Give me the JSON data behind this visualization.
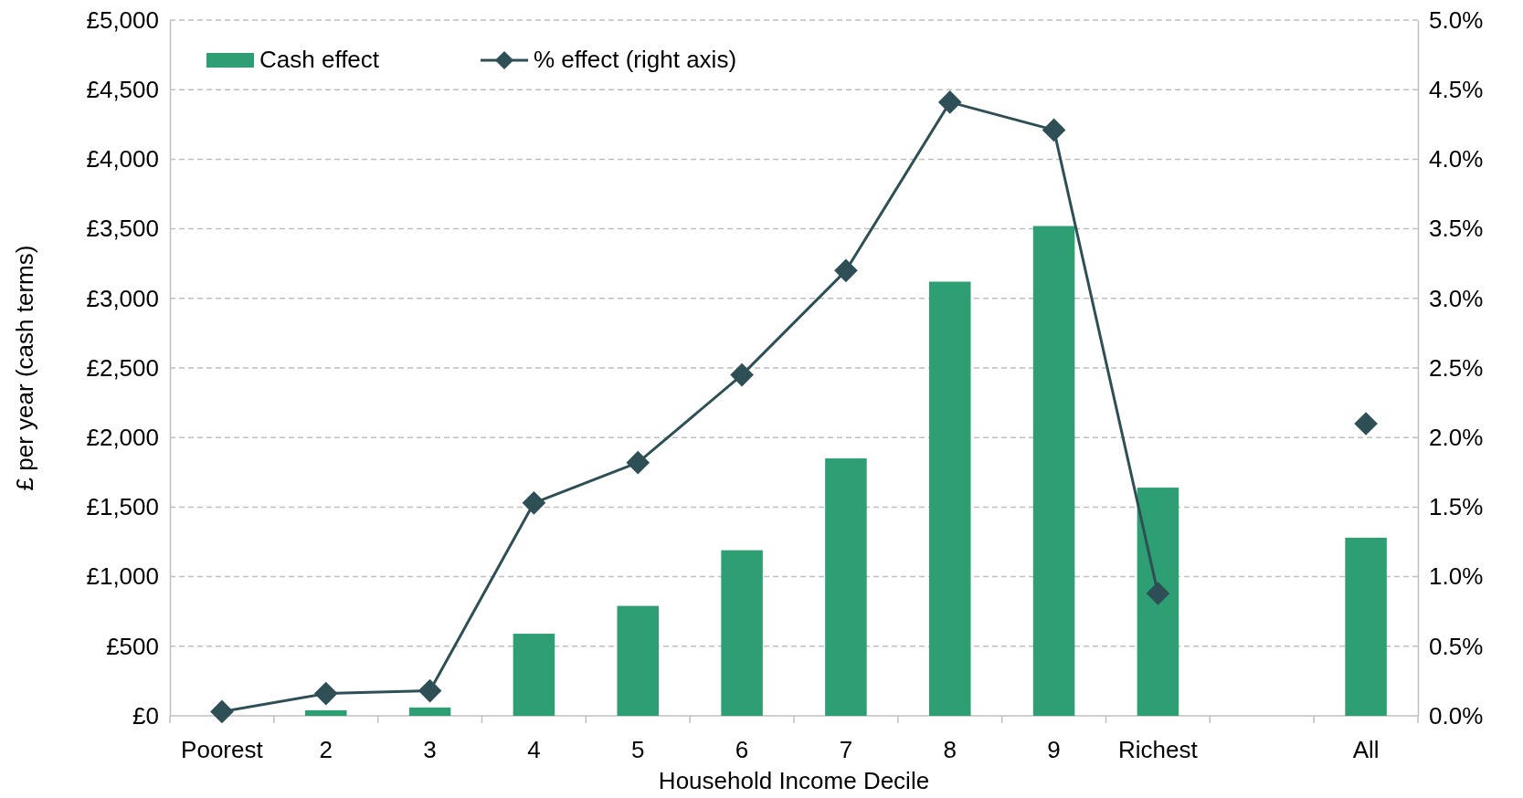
{
  "chart_data": {
    "type": "bar",
    "xlabel": "Household Income Decile",
    "ylabel": "£ per year (cash terms)",
    "categories": [
      "Poorest",
      "2",
      "3",
      "4",
      "5",
      "6",
      "7",
      "8",
      "9",
      "Richest",
      null,
      "All"
    ],
    "series": [
      {
        "name": "Cash effect",
        "color": "#2e9e73",
        "values": [
          0,
          40,
          60,
          590,
          790,
          1190,
          1850,
          3120,
          3520,
          1640,
          null,
          1280
        ]
      },
      {
        "name": "% effect (right axis)",
        "type": "line",
        "axis": "y2",
        "color": "#2f4f56",
        "marker": "diamond",
        "values": [
          0.03,
          0.16,
          0.18,
          1.53,
          1.82,
          2.45,
          3.2,
          4.41,
          4.21,
          0.88,
          null,
          2.1
        ]
      }
    ],
    "ylim": [
      0,
      5000
    ],
    "yticks": [
      {
        "value": 0,
        "label": "£0"
      },
      {
        "value": 500,
        "label": "£500"
      },
      {
        "value": 1000,
        "label": "£1,000"
      },
      {
        "value": 1500,
        "label": "£1,500"
      },
      {
        "value": 2000,
        "label": "£2,000"
      },
      {
        "value": 2500,
        "label": "£2,500"
      },
      {
        "value": 3000,
        "label": "£3,000"
      },
      {
        "value": 3500,
        "label": "£3,500"
      },
      {
        "value": 4000,
        "label": "£4,000"
      },
      {
        "value": 4500,
        "label": "£4,500"
      },
      {
        "value": 5000,
        "label": "£5,000"
      }
    ],
    "y2lim": [
      0,
      5
    ],
    "y2ticks": [
      {
        "value": 0,
        "label": "0.0%"
      },
      {
        "value": 0.5,
        "label": "0.5%"
      },
      {
        "value": 1,
        "label": "1.0%"
      },
      {
        "value": 1.5,
        "label": "1.5%"
      },
      {
        "value": 2,
        "label": "2.0%"
      },
      {
        "value": 2.5,
        "label": "2.5%"
      },
      {
        "value": 3,
        "label": "3.0%"
      },
      {
        "value": 3.5,
        "label": "3.5%"
      },
      {
        "value": 4,
        "label": "4.0%"
      },
      {
        "value": 4.5,
        "label": "4.5%"
      },
      {
        "value": 5,
        "label": "5.0%"
      }
    ],
    "grid": "y",
    "legend": "top left"
  }
}
